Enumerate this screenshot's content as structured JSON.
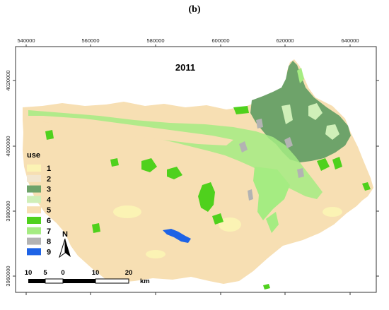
{
  "panel_label": "(b)",
  "map": {
    "year": "2011",
    "x_ticks": [
      "540000",
      "560000",
      "580000",
      "600000",
      "620000",
      "640000"
    ],
    "y_ticks": [
      "4020000",
      "4000000",
      "3980000",
      "3960000"
    ],
    "legend": {
      "title": "use",
      "items": [
        {
          "label": "1",
          "color": "#fbf3b4"
        },
        {
          "label": "2",
          "color": "#f2e6cf"
        },
        {
          "label": "3",
          "color": "#6ea36a"
        },
        {
          "label": "4",
          "color": "#cfefb8"
        },
        {
          "label": "5",
          "color": "#f7dfb3"
        },
        {
          "label": "6",
          "color": "#4fd11d"
        },
        {
          "label": "7",
          "color": "#a5ec82"
        },
        {
          "label": "8",
          "color": "#b3b3b3"
        },
        {
          "label": "9",
          "color": "#1e63e6"
        }
      ]
    },
    "north_arrow": "N",
    "scale_bar": {
      "ticks": [
        "10",
        "5",
        "0",
        "10",
        "20"
      ],
      "unit": "km"
    }
  }
}
